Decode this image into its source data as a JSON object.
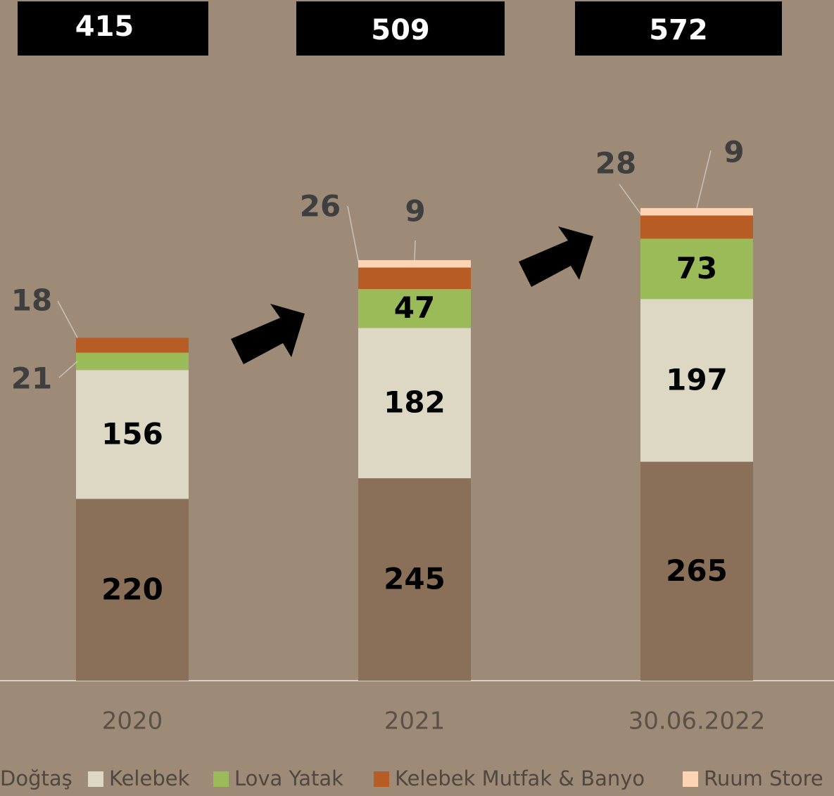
{
  "chart_data": {
    "type": "stacked_bar",
    "categories": [
      "2020",
      "2021",
      "30.06.2022"
    ],
    "totals": [
      415,
      509,
      572
    ],
    "series": [
      {
        "name": "Doğtaş",
        "color": "#8a7059",
        "values": [
          220,
          245,
          265
        ]
      },
      {
        "name": "Kelebek",
        "color": "#ddd8c3",
        "values": [
          156,
          182,
          197
        ]
      },
      {
        "name": "Lova Yatak",
        "color": "#9bbb59",
        "values": [
          21,
          47,
          73
        ]
      },
      {
        "name": "Kelebek Mutfak & Banyo",
        "color": "#b85c25",
        "values": [
          18,
          26,
          28
        ]
      },
      {
        "name": "Ruum Store",
        "color": "#fdd4b4",
        "values": [
          null,
          9,
          9
        ]
      }
    ]
  }
}
